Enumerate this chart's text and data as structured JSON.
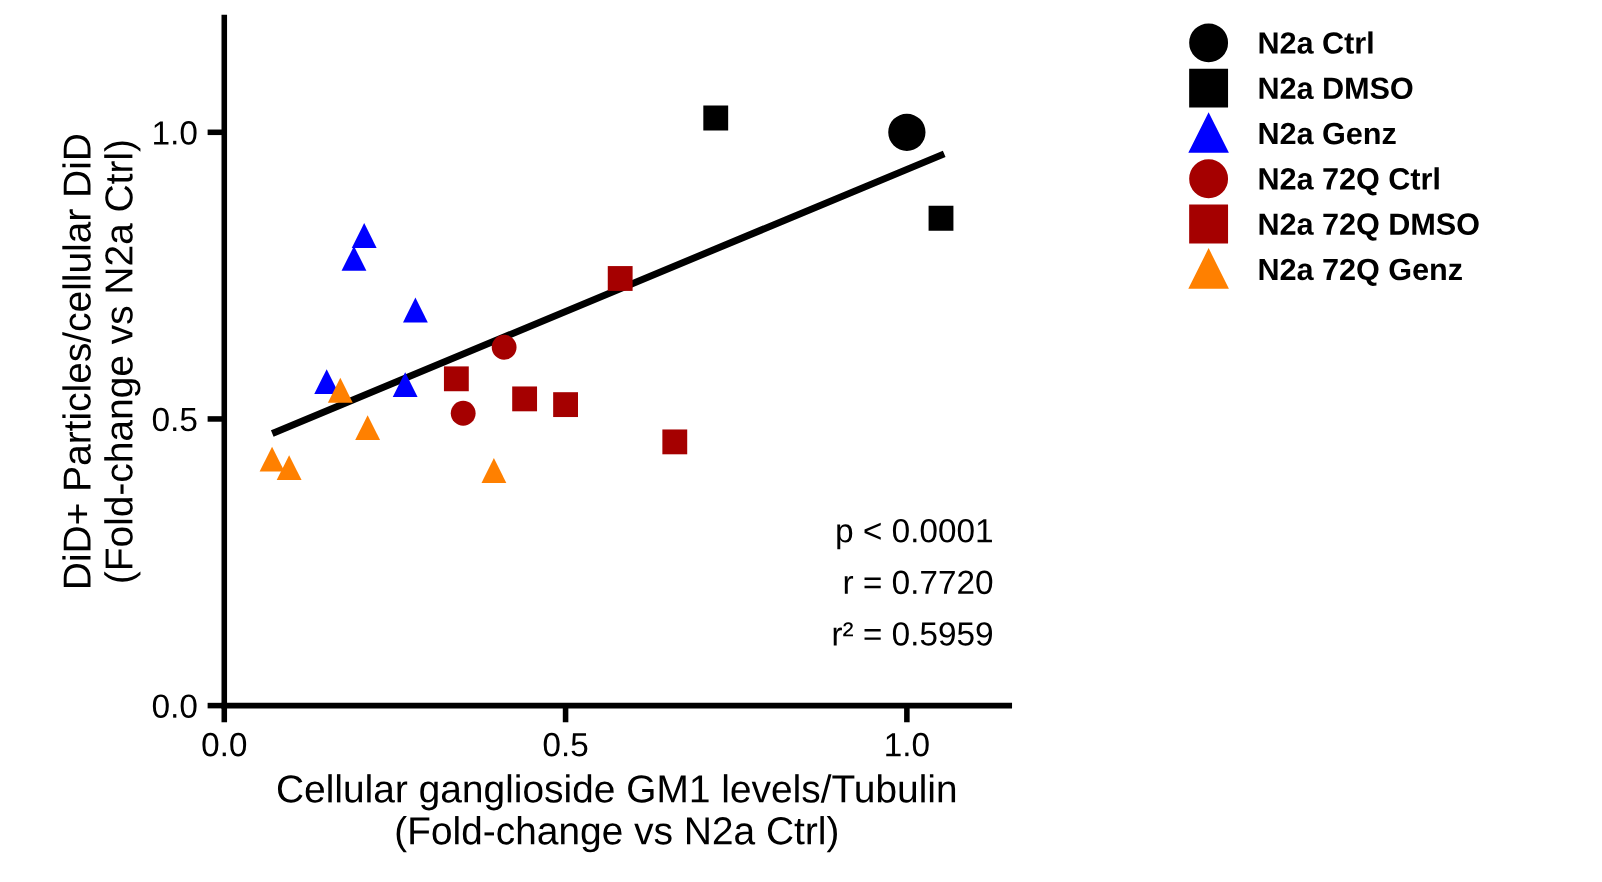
{
  "chart_data": {
    "type": "scatter",
    "xlabel": "Cellular ganglioside GM1 levels/Tubulin\n(Fold-change vs N2a Ctrl)",
    "ylabel": "DiD+ Particles/cellular DiD\n(Fold-change vs N2a Ctrl)",
    "xlim": [
      0,
      1.15
    ],
    "ylim": [
      0,
      1.2
    ],
    "xticks": [
      {
        "value": 0,
        "label": "0.0"
      },
      {
        "value": 0.5,
        "label": "0.5"
      },
      {
        "value": 1,
        "label": "1.0"
      }
    ],
    "yticks": [
      {
        "value": 0,
        "label": "0.0"
      },
      {
        "value": 0.5,
        "label": "0.5"
      },
      {
        "value": 1,
        "label": "1.0"
      }
    ],
    "grid": false,
    "legend": "right",
    "annotations": [
      "p < 0.0001",
      "r = 0.7720",
      "r² = 0.5959"
    ],
    "series": [
      {
        "name": "N2a Ctrl",
        "color": "#000000",
        "marker": "circle",
        "x": [
          1.0
        ],
        "values": [
          1.0
        ]
      },
      {
        "name": "N2a DMSO",
        "color": "#000000",
        "marker": "square",
        "x": [
          0.72,
          1.05
        ],
        "values": [
          1.025,
          0.85
        ]
      },
      {
        "name": "N2a Genz",
        "color": "#0000ff",
        "marker": "triangle",
        "x": [
          0.205,
          0.19,
          0.28,
          0.15,
          0.265
        ],
        "values": [
          0.82,
          0.78,
          0.69,
          0.565,
          0.56
        ]
      },
      {
        "name": "N2a 72Q Ctrl",
        "color": "#a50000",
        "marker": "circle",
        "x": [
          0.41,
          0.35
        ],
        "values": [
          0.625,
          0.51
        ]
      },
      {
        "name": "N2a 72Q DMSO",
        "color": "#a50000",
        "marker": "square",
        "x": [
          0.58,
          0.34,
          0.44,
          0.5,
          0.66
        ],
        "values": [
          0.745,
          0.57,
          0.535,
          0.525,
          0.46
        ]
      },
      {
        "name": "N2a 72Q Genz",
        "color": "#ff8000",
        "marker": "triangle",
        "x": [
          0.17,
          0.21,
          0.07,
          0.095,
          0.395
        ],
        "values": [
          0.55,
          0.485,
          0.43,
          0.415,
          0.41
        ]
      },
      {
        "type": "line",
        "color": "#000000",
        "line_style": "solid",
        "x": [
          0.075,
          1.05
        ],
        "values": [
          0.477,
          0.96
        ]
      }
    ]
  }
}
